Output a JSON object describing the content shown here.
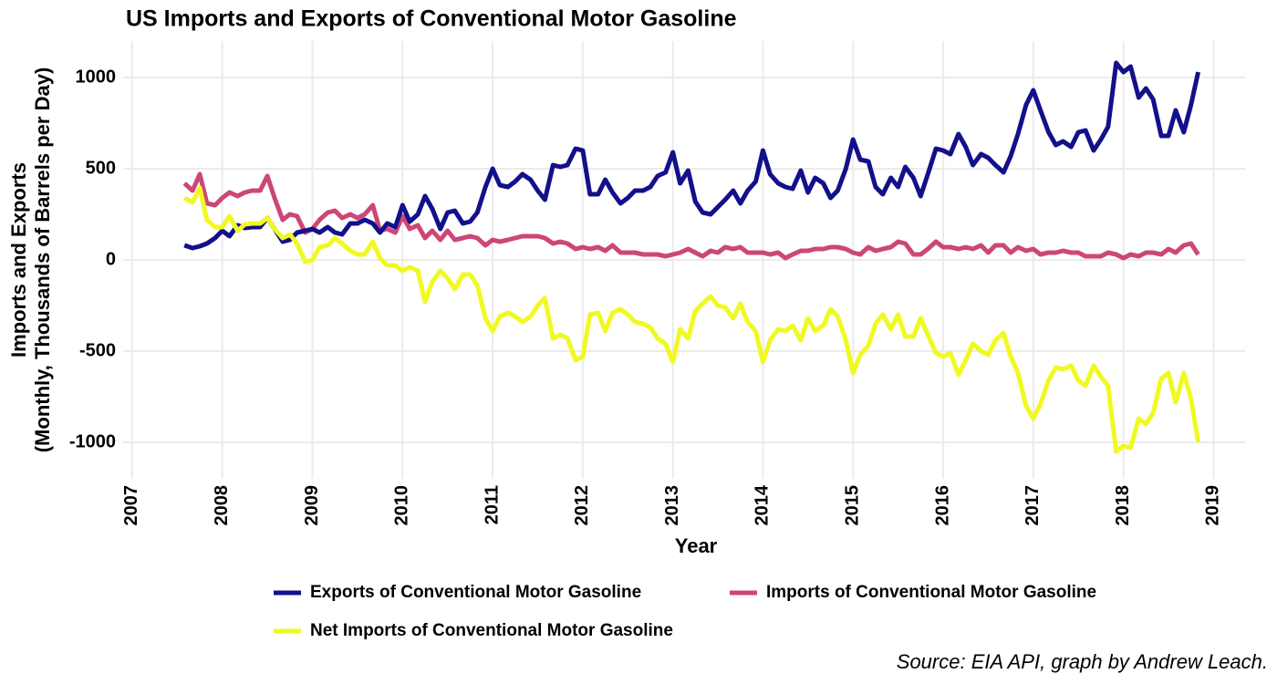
{
  "chart_data": {
    "type": "line",
    "title": "US Imports and Exports of Conventional Motor Gasoline",
    "xlabel": "Year",
    "ylabel": [
      "Imports and Exports",
      "(Monthly, Thousands of Barrels per Day)"
    ],
    "caption": "Source: EIA API, graph by Andrew Leach.",
    "x": [
      2007.58,
      2007.67,
      2007.75,
      2007.83,
      2007.92,
      2008,
      2008.08,
      2008.17,
      2008.25,
      2008.33,
      2008.42,
      2008.5,
      2008.58,
      2008.67,
      2008.75,
      2008.83,
      2008.92,
      2009,
      2009.08,
      2009.17,
      2009.25,
      2009.33,
      2009.42,
      2009.5,
      2009.58,
      2009.67,
      2009.75,
      2009.83,
      2009.92,
      2010,
      2010.08,
      2010.17,
      2010.25,
      2010.33,
      2010.42,
      2010.5,
      2010.58,
      2010.67,
      2010.75,
      2010.83,
      2010.92,
      2011,
      2011.08,
      2011.17,
      2011.25,
      2011.33,
      2011.42,
      2011.5,
      2011.58,
      2011.67,
      2011.75,
      2011.83,
      2011.92,
      2012,
      2012.08,
      2012.17,
      2012.25,
      2012.33,
      2012.42,
      2012.5,
      2012.58,
      2012.67,
      2012.75,
      2012.83,
      2012.92,
      2013,
      2013.08,
      2013.17,
      2013.25,
      2013.33,
      2013.42,
      2013.5,
      2013.58,
      2013.67,
      2013.75,
      2013.83,
      2013.92,
      2014,
      2014.08,
      2014.17,
      2014.25,
      2014.33,
      2014.42,
      2014.5,
      2014.58,
      2014.67,
      2014.75,
      2014.83,
      2014.92,
      2015,
      2015.08,
      2015.17,
      2015.25,
      2015.33,
      2015.42,
      2015.5,
      2015.58,
      2015.67,
      2015.75,
      2015.83,
      2015.92,
      2016,
      2016.08,
      2016.17,
      2016.25,
      2016.33,
      2016.42,
      2016.5,
      2016.58,
      2016.67,
      2016.75,
      2016.83,
      2016.92,
      2017,
      2017.08,
      2017.17,
      2017.25,
      2017.33,
      2017.42,
      2017.5,
      2017.58,
      2017.67,
      2017.75,
      2017.83,
      2017.92,
      2018,
      2018.08,
      2018.17,
      2018.25,
      2018.33,
      2018.42,
      2018.5,
      2018.58,
      2018.67,
      2018.75,
      2018.83
    ],
    "series": [
      {
        "name": "Exports of Conventional Motor Gasoline",
        "color": "#12108a",
        "values": [
          80,
          65,
          75,
          90,
          120,
          160,
          130,
          190,
          175,
          180,
          180,
          230,
          170,
          100,
          110,
          150,
          160,
          170,
          150,
          180,
          150,
          140,
          200,
          200,
          220,
          200,
          150,
          200,
          180,
          300,
          210,
          250,
          350,
          280,
          170,
          260,
          270,
          200,
          210,
          260,
          400,
          500,
          410,
          400,
          430,
          470,
          440,
          380,
          330,
          520,
          510,
          520,
          610,
          600,
          360,
          360,
          440,
          370,
          310,
          340,
          380,
          380,
          400,
          460,
          480,
          590,
          420,
          490,
          320,
          260,
          250,
          290,
          330,
          380,
          310,
          380,
          430,
          600,
          470,
          420,
          400,
          390,
          490,
          370,
          450,
          420,
          340,
          380,
          500,
          660,
          550,
          540,
          400,
          360,
          450,
          400,
          510,
          450,
          350,
          470,
          610,
          600,
          580,
          690,
          620,
          520,
          580,
          560,
          520,
          480,
          570,
          690,
          850,
          930,
          820,
          700,
          630,
          650,
          620,
          700,
          710,
          600,
          660,
          730,
          1080,
          1030,
          1060,
          890,
          940,
          880,
          680,
          680,
          820,
          700,
          850,
          1030
        ]
      },
      {
        "name": "Imports of Conventional Motor Gasoline",
        "color": "#cc4778",
        "values": [
          420,
          380,
          470,
          310,
          300,
          340,
          370,
          350,
          370,
          380,
          380,
          460,
          340,
          220,
          250,
          240,
          150,
          170,
          220,
          260,
          270,
          230,
          250,
          230,
          250,
          300,
          160,
          170,
          150,
          240,
          170,
          190,
          120,
          160,
          110,
          160,
          110,
          120,
          130,
          120,
          80,
          110,
          100,
          110,
          120,
          130,
          130,
          130,
          120,
          90,
          100,
          90,
          60,
          70,
          60,
          70,
          50,
          80,
          40,
          40,
          40,
          30,
          30,
          30,
          20,
          30,
          40,
          60,
          40,
          20,
          50,
          40,
          70,
          60,
          70,
          40,
          40,
          40,
          30,
          40,
          10,
          30,
          50,
          50,
          60,
          60,
          70,
          70,
          60,
          40,
          30,
          70,
          50,
          60,
          70,
          100,
          90,
          30,
          30,
          60,
          100,
          70,
          70,
          60,
          70,
          60,
          80,
          40,
          80,
          80,
          40,
          70,
          50,
          60,
          30,
          40,
          40,
          50,
          40,
          40,
          20,
          20,
          20,
          40,
          30,
          10,
          30,
          20,
          40,
          40,
          30,
          60,
          40,
          80,
          90,
          30
        ]
      },
      {
        "name": "Net Imports of Conventional Motor Gasoline",
        "color": "#f0f921",
        "values": [
          340,
          315,
          395,
          220,
          180,
          180,
          240,
          160,
          195,
          200,
          200,
          230,
          170,
          120,
          140,
          90,
          -10,
          0,
          70,
          80,
          120,
          90,
          50,
          30,
          30,
          100,
          10,
          -30,
          -30,
          -60,
          -40,
          -60,
          -230,
          -120,
          -60,
          -100,
          -160,
          -80,
          -80,
          -140,
          -320,
          -390,
          -310,
          -290,
          -310,
          -340,
          -310,
          -250,
          -210,
          -430,
          -410,
          -430,
          -550,
          -530,
          -300,
          -290,
          -390,
          -290,
          -270,
          -300,
          -340,
          -350,
          -370,
          -430,
          -460,
          -560,
          -380,
          -430,
          -280,
          -240,
          -200,
          -250,
          -260,
          -320,
          -240,
          -340,
          -390,
          -560,
          -440,
          -380,
          -390,
          -360,
          -440,
          -320,
          -390,
          -360,
          -270,
          -310,
          -440,
          -620,
          -520,
          -470,
          -350,
          -300,
          -380,
          -300,
          -420,
          -420,
          -320,
          -410,
          -510,
          -530,
          -510,
          -630,
          -550,
          -460,
          -500,
          -520,
          -440,
          -400,
          -530,
          -620,
          -800,
          -870,
          -790,
          -660,
          -590,
          -600,
          -580,
          -660,
          -690,
          -580,
          -640,
          -690,
          -1050,
          -1020,
          -1030,
          -870,
          -900,
          -840,
          -650,
          -620,
          -780,
          -620,
          -760,
          -1000
        ]
      }
    ],
    "xlim": [
      2006.9,
      2019.35
    ],
    "xticks": [
      2007,
      2008,
      2009,
      2010,
      2011,
      2012,
      2013,
      2014,
      2015,
      2016,
      2017,
      2018,
      2019
    ],
    "ylim": [
      -1200,
      1200
    ],
    "yticks": [
      -1000,
      -500,
      0,
      500,
      1000
    ],
    "grid": true
  }
}
